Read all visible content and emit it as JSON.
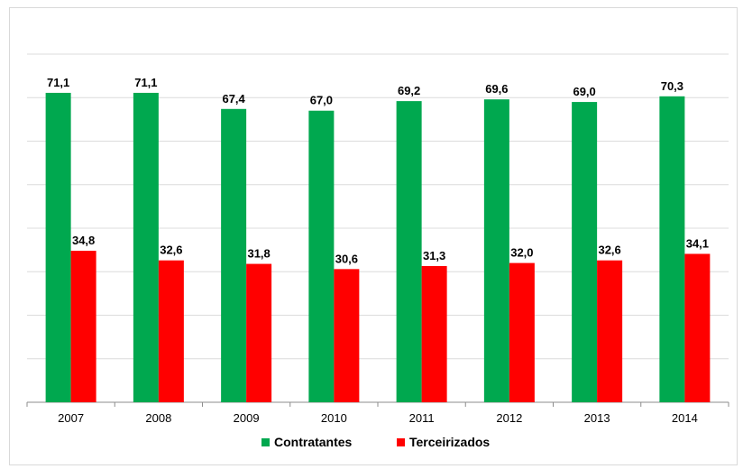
{
  "chart_data": {
    "type": "bar",
    "title": "",
    "xlabel": "",
    "ylabel": "",
    "categories": [
      "2007",
      "2008",
      "2009",
      "2010",
      "2011",
      "2012",
      "2013",
      "2014"
    ],
    "series": [
      {
        "name": "Contratantes",
        "color": "#00a84f",
        "values": [
          71.1,
          71.1,
          67.4,
          67.0,
          69.2,
          69.6,
          69.0,
          70.3
        ],
        "labels": [
          "71,1",
          "71,1",
          "67,4",
          "67,0",
          "69,2",
          "69,6",
          "69,0",
          "70,3"
        ]
      },
      {
        "name": "Terceirizados",
        "color": "#ff0000",
        "values": [
          34.8,
          32.6,
          31.8,
          30.6,
          31.3,
          32.0,
          32.6,
          34.1
        ],
        "labels": [
          "34,8",
          "32,6",
          "31,8",
          "30,6",
          "31,3",
          "32,0",
          "32,6",
          "34,1"
        ]
      }
    ],
    "ylim": [
      0,
      80
    ],
    "grid": true,
    "legend": "bottom"
  }
}
